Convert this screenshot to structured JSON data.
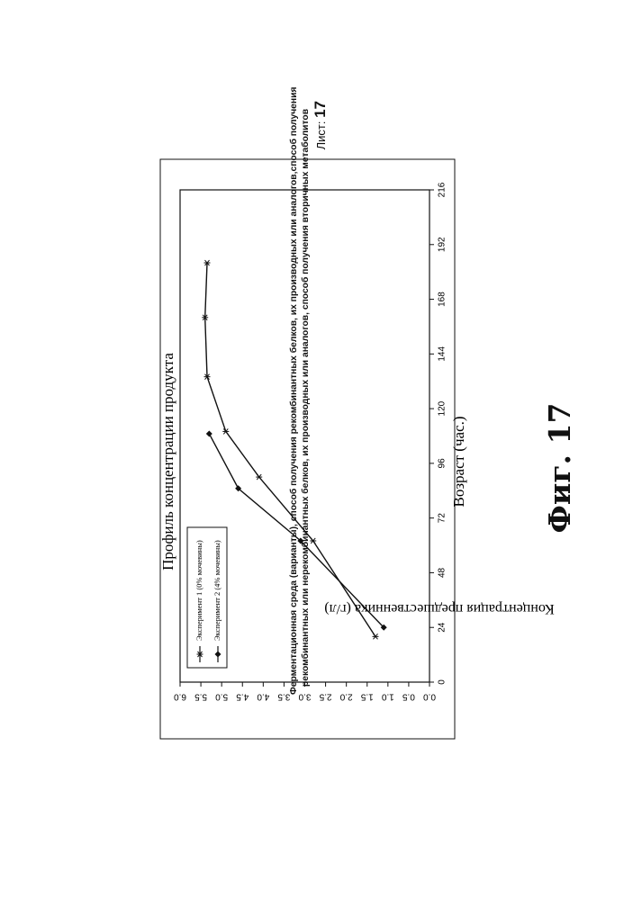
{
  "header": {
    "line1": "Ферментационная среда (варианты), способ получения рекомбинантных белков, их производных или аналогов,способ получения",
    "line2": "рекомбинантных или нерекомбинантных белков, их производных или аналогов, способ получения вторичных метаболитов",
    "sheet_label": "Лист:",
    "sheet_number": "17"
  },
  "figure_label": "Фиг. 17",
  "chart_data": {
    "type": "line",
    "title": "Профиль концентрации продукта",
    "xlabel": "Возраст (час.)",
    "ylabel": "Концентрация предшественника (г/л)",
    "xlim": [
      0,
      216
    ],
    "ylim": [
      0,
      6.0
    ],
    "x_ticks": [
      "0",
      "24",
      "48",
      "72",
      "96",
      "120",
      "144",
      "168",
      "192",
      "216"
    ],
    "y_ticks": [
      "0.0",
      "0.5",
      "1.0",
      "1.5",
      "2.0",
      "2.5",
      "3.0",
      "3.5",
      "4.0",
      "4.5",
      "5.0",
      "5.5",
      "6.0"
    ],
    "grid": false,
    "legend_position": "bottom-left",
    "series": [
      {
        "name": "Эксперимент 1 (0% мочевины)",
        "marker": "asterisk",
        "x": [
          20,
          62,
          90,
          110,
          134,
          160,
          184
        ],
        "y": [
          1.3,
          2.8,
          4.1,
          4.9,
          5.35,
          5.4,
          5.35
        ]
      },
      {
        "name": "Эксперимент 2 (4% мочевины)",
        "marker": "diamond",
        "x": [
          24,
          62,
          85,
          109
        ],
        "y": [
          1.1,
          3.1,
          4.6,
          5.3
        ]
      }
    ]
  }
}
